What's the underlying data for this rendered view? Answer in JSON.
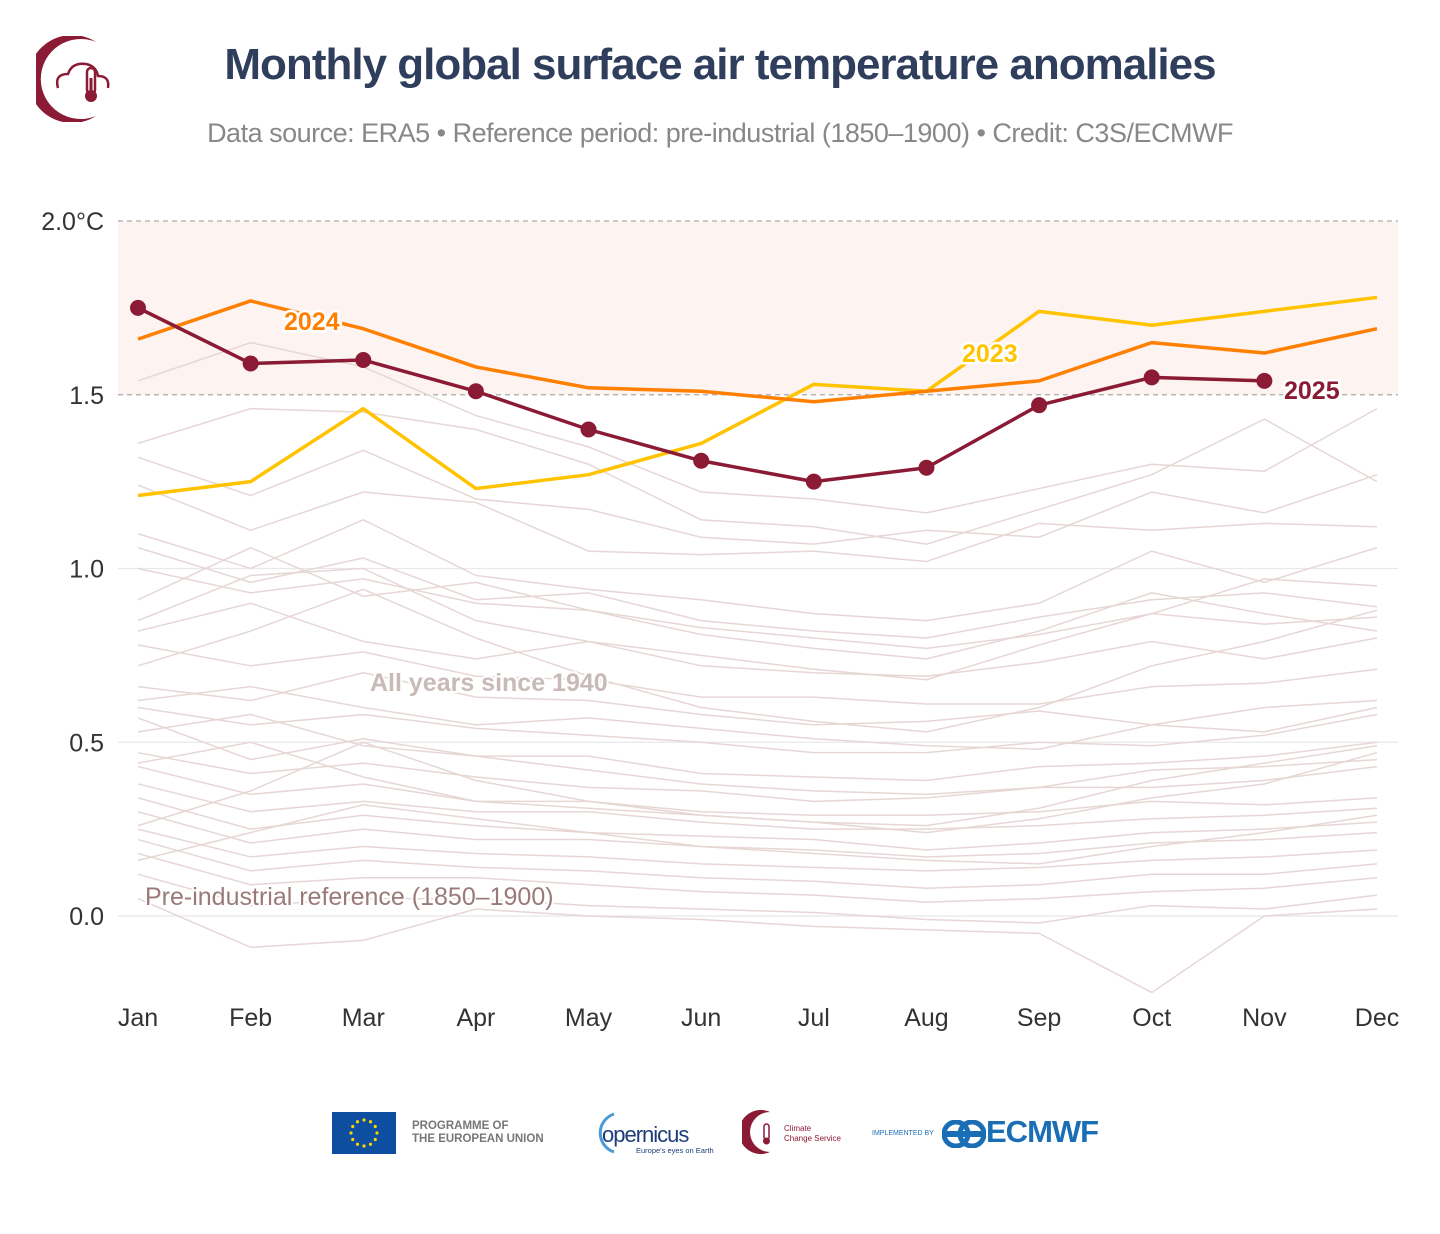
{
  "title": "Monthly global surface air temperature anomalies",
  "subtitle": "Data source: ERA5 • Reference period: pre-industrial (1850–1900) • Credit: C3S/ECMWF",
  "colors": {
    "y2025": "#8b1a35",
    "y2024": "#ff7f00",
    "y2023": "#ffc300",
    "background_years": "#e6d7d5",
    "shade": "#fdf3f1",
    "title": "#2f3e5c"
  },
  "footer": {
    "eu_text_1": "PROGRAMME OF",
    "eu_text_2": "THE EUROPEAN UNION",
    "copernicus": "opernicus",
    "copernicus_tag": "Europe's eyes on Earth",
    "c3s_1": "Climate",
    "c3s_2": "Change Service",
    "implemented": "IMPLEMENTED BY",
    "ecmwf": "ECMWF"
  },
  "chart_data": {
    "type": "line",
    "title": "Monthly global surface air temperature anomalies",
    "categories": [
      "Jan",
      "Feb",
      "Mar",
      "Apr",
      "May",
      "Jun",
      "Jul",
      "Aug",
      "Sep",
      "Oct",
      "Nov",
      "Dec"
    ],
    "ylim": [
      -0.22,
      2.0
    ],
    "yticks": [
      {
        "value": 2.0,
        "label": "2.0°C"
      },
      {
        "value": 1.5,
        "label": "1.5"
      },
      {
        "value": 1.0,
        "label": "1.0"
      },
      {
        "value": 0.5,
        "label": "0.5"
      },
      {
        "value": 0.0,
        "label": "0.0"
      }
    ],
    "shaded_band": [
      1.5,
      2.0
    ],
    "annotations": {
      "all_years": "All years since 1940",
      "reference": "Pre-industrial reference (1850–1900)"
    },
    "series": [
      {
        "name": "2025",
        "values": [
          1.75,
          1.59,
          1.6,
          1.51,
          1.4,
          1.31,
          1.25,
          1.29,
          1.47,
          1.55,
          1.54,
          null
        ],
        "markers": true
      },
      {
        "name": "2024",
        "values": [
          1.66,
          1.77,
          1.69,
          1.58,
          1.52,
          1.51,
          1.48,
          1.51,
          1.54,
          1.65,
          1.62,
          1.69
        ]
      },
      {
        "name": "2023",
        "values": [
          1.21,
          1.25,
          1.46,
          1.23,
          1.27,
          1.36,
          1.53,
          1.51,
          1.74,
          1.7,
          1.74,
          1.78
        ]
      }
    ],
    "background_series": [
      [
        1.54,
        1.65,
        1.58,
        1.44,
        1.35,
        1.22,
        1.2,
        1.16,
        1.23,
        1.3,
        1.28,
        1.46
      ],
      [
        1.36,
        1.46,
        1.45,
        1.4,
        1.3,
        1.14,
        1.12,
        1.07,
        1.17,
        1.27,
        1.43,
        1.25
      ],
      [
        1.32,
        1.21,
        1.34,
        1.2,
        1.17,
        1.09,
        1.07,
        1.11,
        1.09,
        1.22,
        1.16,
        1.27
      ],
      [
        1.24,
        1.11,
        1.22,
        1.19,
        1.05,
        1.04,
        1.05,
        1.02,
        1.13,
        1.11,
        1.13,
        1.12
      ],
      [
        1.1,
        1.0,
        1.14,
        0.98,
        0.94,
        0.91,
        0.87,
        0.85,
        0.9,
        1.05,
        0.96,
        1.06
      ],
      [
        1.06,
        0.96,
        1.03,
        0.91,
        0.93,
        0.85,
        0.82,
        0.8,
        0.86,
        0.91,
        0.93,
        0.89
      ],
      [
        0.91,
        1.06,
        0.92,
        0.96,
        0.88,
        0.81,
        0.77,
        0.74,
        0.82,
        0.93,
        0.87,
        0.82
      ],
      [
        0.82,
        0.9,
        0.79,
        0.74,
        0.79,
        0.72,
        0.7,
        0.69,
        0.73,
        0.79,
        0.74,
        0.8
      ],
      [
        0.78,
        0.72,
        0.76,
        0.69,
        0.68,
        0.63,
        0.63,
        0.61,
        0.61,
        0.66,
        0.67,
        0.71
      ],
      [
        0.66,
        0.62,
        0.7,
        0.63,
        0.62,
        0.58,
        0.55,
        0.56,
        0.59,
        0.55,
        0.6,
        0.62
      ],
      [
        0.6,
        0.55,
        0.58,
        0.54,
        0.52,
        0.5,
        0.47,
        0.47,
        0.5,
        0.49,
        0.52,
        0.58
      ],
      [
        0.57,
        0.45,
        0.51,
        0.46,
        0.46,
        0.41,
        0.4,
        0.39,
        0.43,
        0.44,
        0.46,
        0.5
      ],
      [
        0.47,
        0.41,
        0.44,
        0.4,
        0.37,
        0.36,
        0.33,
        0.34,
        0.37,
        0.37,
        0.39,
        0.43
      ],
      [
        0.43,
        0.35,
        0.38,
        0.33,
        0.33,
        0.3,
        0.29,
        0.29,
        0.3,
        0.33,
        0.32,
        0.34
      ],
      [
        0.38,
        0.3,
        0.33,
        0.3,
        0.3,
        0.27,
        0.25,
        0.25,
        0.26,
        0.28,
        0.29,
        0.31
      ],
      [
        0.34,
        0.25,
        0.29,
        0.26,
        0.24,
        0.23,
        0.22,
        0.19,
        0.21,
        0.24,
        0.25,
        0.27
      ],
      [
        0.3,
        0.21,
        0.25,
        0.22,
        0.22,
        0.2,
        0.19,
        0.17,
        0.18,
        0.21,
        0.22,
        0.24
      ],
      [
        0.25,
        0.17,
        0.2,
        0.18,
        0.17,
        0.15,
        0.14,
        0.13,
        0.14,
        0.16,
        0.17,
        0.19
      ],
      [
        0.22,
        0.13,
        0.16,
        0.14,
        0.13,
        0.11,
        0.1,
        0.08,
        0.09,
        0.12,
        0.12,
        0.15
      ],
      [
        0.18,
        0.09,
        0.11,
        0.11,
        0.09,
        0.07,
        0.06,
        0.04,
        0.05,
        0.07,
        0.08,
        0.11
      ],
      [
        0.12,
        0.03,
        0.05,
        0.05,
        0.03,
        0.02,
        0.01,
        -0.01,
        -0.02,
        0.03,
        0.02,
        0.06
      ],
      [
        0.05,
        -0.09,
        -0.07,
        0.02,
        0.0,
        -0.01,
        -0.03,
        -0.04,
        -0.05,
        -0.22,
        0.0,
        0.02
      ],
      [
        0.26,
        0.36,
        0.5,
        0.39,
        0.33,
        0.29,
        0.27,
        0.24,
        0.28,
        0.34,
        0.38,
        0.47
      ],
      [
        0.72,
        0.82,
        0.94,
        0.8,
        0.69,
        0.6,
        0.56,
        0.53,
        0.6,
        0.72,
        0.79,
        0.88
      ],
      [
        0.44,
        0.5,
        0.4,
        0.33,
        0.31,
        0.29,
        0.27,
        0.26,
        0.31,
        0.39,
        0.44,
        0.49
      ],
      [
        0.85,
        0.98,
        1.0,
        0.85,
        0.79,
        0.75,
        0.71,
        0.68,
        0.78,
        0.87,
        0.97,
        0.95
      ],
      [
        0.16,
        0.24,
        0.32,
        0.28,
        0.24,
        0.2,
        0.18,
        0.16,
        0.15,
        0.2,
        0.24,
        0.29
      ],
      [
        0.62,
        0.66,
        0.6,
        0.55,
        0.57,
        0.54,
        0.51,
        0.49,
        0.48,
        0.55,
        0.53,
        0.6
      ],
      [
        1.0,
        0.93,
        0.97,
        0.9,
        0.88,
        0.83,
        0.8,
        0.77,
        0.81,
        0.87,
        0.84,
        0.86
      ],
      [
        0.53,
        0.58,
        0.49,
        0.46,
        0.42,
        0.38,
        0.36,
        0.35,
        0.37,
        0.42,
        0.43,
        0.45
      ]
    ]
  }
}
